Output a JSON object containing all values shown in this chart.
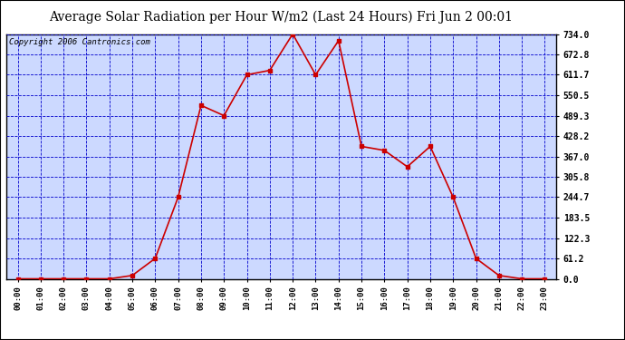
{
  "title": "Average Solar Radiation per Hour W/m2 (Last 24 Hours) Fri Jun 2 00:01",
  "copyright": "Copyright 2006 Cantronics.com",
  "hours": [
    "00:00",
    "01:00",
    "02:00",
    "03:00",
    "04:00",
    "05:00",
    "06:00",
    "07:00",
    "08:00",
    "09:00",
    "10:00",
    "11:00",
    "12:00",
    "13:00",
    "14:00",
    "15:00",
    "16:00",
    "17:00",
    "18:00",
    "19:00",
    "20:00",
    "21:00",
    "22:00",
    "23:00"
  ],
  "values": [
    0.0,
    0.0,
    0.0,
    0.0,
    0.0,
    10.0,
    61.2,
    244.7,
    520.0,
    489.3,
    611.7,
    625.0,
    734.0,
    611.7,
    714.0,
    397.0,
    385.0,
    336.0,
    397.0,
    244.7,
    61.2,
    10.0,
    0.0,
    0.0
  ],
  "y_ticks": [
    0.0,
    61.2,
    122.3,
    183.5,
    244.7,
    305.8,
    367.0,
    428.2,
    489.3,
    550.5,
    611.7,
    672.8,
    734.0
  ],
  "y_max": 734.0,
  "line_color": "#cc0000",
  "marker_color": "#cc0000",
  "bg_color": "#ccd9ff",
  "grid_color": "#0000cc",
  "title_fontsize": 10,
  "copyright_fontsize": 6.5,
  "fig_bg": "#ffffff"
}
